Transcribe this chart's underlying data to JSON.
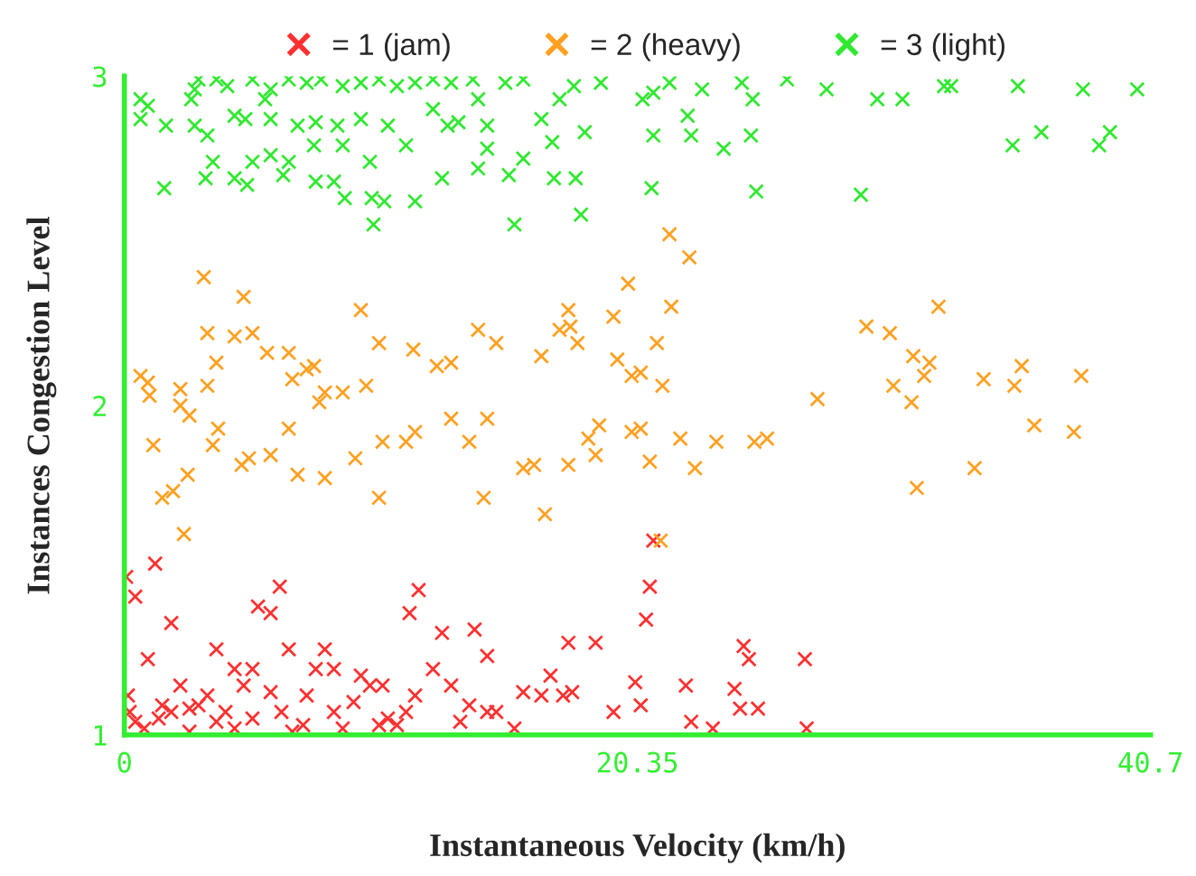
{
  "chart_data": {
    "type": "scatter",
    "xlabel": "Instantaneous Velocity (km/h)",
    "ylabel": "Instances Congestion Level",
    "xlim": [
      0,
      40.7
    ],
    "xticks": [
      0,
      20.35,
      40.7
    ],
    "ylim": [
      1,
      3
    ],
    "yticks": [
      1,
      2,
      3
    ],
    "grid": false,
    "legend": "top",
    "marker": "cross",
    "series": [
      {
        "name": "= 1 (jam)",
        "color": "#ff3030",
        "x": [
          0.07,
          0.43,
          1.22,
          0.93,
          1.5,
          1.86,
          2.22,
          0.14,
          0.21,
          0.43,
          0.79,
          1.36,
          1.86,
          2.58,
          2.94,
          3.29,
          3.65,
          4.01,
          4.37,
          4.73,
          5.08,
          5.3,
          5.8,
          6.23,
          6.66,
          7.23,
          7.59,
          7.95,
          8.31,
          8.66,
          9.09,
          9.38,
          9.74,
          10.1,
          10.45,
          10.81,
          11.17,
          11.53,
          12.24,
          12.96,
          13.68,
          13.89,
          14.39,
          14.75,
          15.47,
          16.54,
          16.9,
          17.4,
          17.61,
          18.69,
          19.4,
          20.26,
          20.48,
          20.69,
          20.84,
          20.98,
          22.27,
          22.48,
          23.34,
          24.42,
          25.13,
          24.2,
          24.56,
          24.77,
          27.06,
          26.99,
          11.67,
          11.31,
          12.6,
          3.65,
          6.52,
          4.37,
          14.39,
          13.32,
          7.09,
          5.08,
          2.58,
          5.8,
          10.24,
          8.31,
          17.76,
          15.82,
          6.16
        ],
        "values": [
          1.48,
          1.42,
          1.52,
          1.23,
          1.09,
          1.34,
          1.15,
          1.12,
          1.07,
          1.04,
          1.02,
          1.05,
          1.07,
          1.08,
          1.09,
          1.12,
          1.04,
          1.07,
          1.02,
          1.15,
          1.2,
          1.39,
          1.37,
          1.07,
          1.01,
          1.12,
          1.2,
          1.26,
          1.07,
          1.02,
          1.1,
          1.18,
          1.15,
          1.03,
          1.05,
          1.03,
          1.07,
          1.12,
          1.2,
          1.15,
          1.09,
          1.32,
          1.24,
          1.07,
          1.02,
          1.12,
          1.18,
          1.12,
          1.28,
          1.28,
          1.07,
          1.16,
          1.09,
          1.35,
          1.45,
          1.59,
          1.15,
          1.04,
          1.02,
          1.08,
          1.08,
          1.14,
          1.27,
          1.23,
          1.02,
          1.23,
          1.44,
          1.37,
          1.31,
          1.26,
          1.26,
          1.2,
          1.07,
          1.04,
          1.03,
          1.05,
          1.01,
          1.13,
          1.15,
          1.2,
          1.13,
          1.13,
          1.45
        ]
      },
      {
        "name": "= 2 (heavy)",
        "color": "#ffa020",
        "x": [
          0.64,
          0.93,
          3.15,
          4.73,
          3.29,
          4.37,
          5.66,
          3.29,
          3.65,
          2.22,
          2.22,
          6.66,
          7.23,
          7.95,
          8.66,
          9.38,
          9.59,
          10.1,
          11.46,
          12.39,
          12.96,
          14.03,
          14.75,
          16.54,
          17.26,
          17.61,
          17.69,
          17.97,
          19.4,
          19.98,
          18.83,
          19.55,
          20.12,
          20.48,
          21.12,
          21.69,
          21.62,
          22.41,
          21.34,
          23.48,
          22.63,
          21.27,
          29.43,
          30.36,
          31.29,
          31.93,
          32.29,
          30.5,
          31.22,
          31.43,
          31.72,
          33.72,
          34.08,
          35.3,
          35.59,
          36.09,
          37.66,
          37.95,
          27.49,
          24.99,
          25.49,
          1.0,
          1.15,
          1.93,
          2.51,
          1.5,
          2.36,
          3.51,
          3.72,
          4.65,
          4.94,
          5.8,
          6.52,
          6.87,
          7.95,
          9.16,
          10.1,
          10.24,
          11.17,
          11.53,
          12.96,
          13.68,
          14.39,
          14.25,
          15.82,
          16.68,
          16.25,
          18.4,
          17.61,
          18.69,
          20.12,
          20.48,
          22.05,
          20.84,
          7.52,
          7.73,
          2.58,
          5.08,
          6.52
        ],
        "values": [
          2.09,
          2.07,
          2.39,
          2.33,
          2.22,
          2.21,
          2.16,
          2.06,
          2.13,
          2.0,
          2.05,
          2.08,
          2.11,
          2.04,
          2.04,
          2.29,
          2.06,
          2.19,
          2.17,
          2.12,
          2.13,
          2.23,
          2.19,
          2.15,
          2.23,
          2.29,
          2.24,
          2.19,
          2.27,
          2.37,
          1.94,
          2.14,
          2.09,
          2.1,
          2.19,
          2.3,
          2.52,
          2.45,
          2.06,
          1.89,
          1.81,
          1.59,
          2.24,
          2.22,
          2.15,
          2.13,
          2.3,
          2.06,
          2.01,
          1.75,
          2.09,
          1.81,
          2.08,
          2.06,
          2.12,
          1.94,
          1.92,
          2.09,
          2.02,
          1.89,
          1.9,
          2.03,
          1.88,
          1.74,
          1.79,
          1.72,
          1.61,
          1.88,
          1.93,
          1.82,
          1.84,
          1.85,
          1.93,
          1.79,
          1.78,
          1.84,
          1.72,
          1.89,
          1.89,
          1.92,
          1.96,
          1.89,
          1.96,
          1.72,
          1.81,
          1.67,
          1.82,
          1.9,
          1.82,
          1.85,
          1.92,
          1.93,
          1.9,
          1.83,
          2.12,
          2.01,
          1.97,
          2.22,
          2.16
        ]
      },
      {
        "name": "= 3 (light)",
        "color": "#30e830",
        "x": [
          0.64,
          0.93,
          2.65,
          2.79,
          3.65,
          4.08,
          2.94,
          5.08,
          5.58,
          5.8,
          6.52,
          7.23,
          7.8,
          8.66,
          9.38,
          10.1,
          10.81,
          11.53,
          12.24,
          12.96,
          13.82,
          14.03,
          15.11,
          15.82,
          0.64,
          1.65,
          2.79,
          3.29,
          4.37,
          4.8,
          5.8,
          6.87,
          7.59,
          8.45,
          9.38,
          10.45,
          11.17,
          12.24,
          12.82,
          14.39,
          16.54,
          16.97,
          17.26,
          17.83,
          18.26,
          18.9,
          20.55,
          20.98,
          22.48,
          21.62,
          22.91,
          24.49,
          24.92,
          26.28,
          27.85,
          29.86,
          30.86,
          32.51,
          32.79,
          35.44,
          38.02,
          40.17,
          39.09,
          36.37,
          38.66,
          35.23,
          23.77,
          24.85,
          20.98,
          22.34,
          1.58,
          3.22,
          4.37,
          4.87,
          6.3,
          7.59,
          8.74,
          9.81,
          10.31,
          11.53,
          12.6,
          14.03,
          14.39,
          15.25,
          15.82,
          17.04,
          17.9,
          25.06,
          20.91,
          18.11,
          15.47,
          9.88,
          29.21,
          13.25,
          9.74,
          5.8,
          6.52,
          3.51,
          5.08,
          7.52,
          8.31,
          8.66
        ],
        "values": [
          2.93,
          2.91,
          2.93,
          2.96,
          2.99,
          2.97,
          2.99,
          2.99,
          2.93,
          2.96,
          2.99,
          2.98,
          2.99,
          2.97,
          2.98,
          2.99,
          2.97,
          2.98,
          2.99,
          2.98,
          2.99,
          2.93,
          2.98,
          2.99,
          2.87,
          2.85,
          2.85,
          2.82,
          2.88,
          2.87,
          2.87,
          2.85,
          2.86,
          2.85,
          2.87,
          2.85,
          2.79,
          2.9,
          2.85,
          2.85,
          2.87,
          2.8,
          2.93,
          2.97,
          2.83,
          2.98,
          2.93,
          2.95,
          2.82,
          2.98,
          2.96,
          2.98,
          2.93,
          2.99,
          2.96,
          2.93,
          2.93,
          2.97,
          2.97,
          2.97,
          2.96,
          2.96,
          2.83,
          2.83,
          2.79,
          2.79,
          2.78,
          2.82,
          2.82,
          2.88,
          2.66,
          2.69,
          2.69,
          2.67,
          2.7,
          2.68,
          2.63,
          2.63,
          2.62,
          2.62,
          2.69,
          2.72,
          2.78,
          2.7,
          2.75,
          2.69,
          2.69,
          2.65,
          2.66,
          2.58,
          2.55,
          2.55,
          2.64,
          2.86,
          2.74,
          2.76,
          2.74,
          2.74,
          2.74,
          2.79,
          2.68,
          2.79
        ]
      }
    ]
  }
}
